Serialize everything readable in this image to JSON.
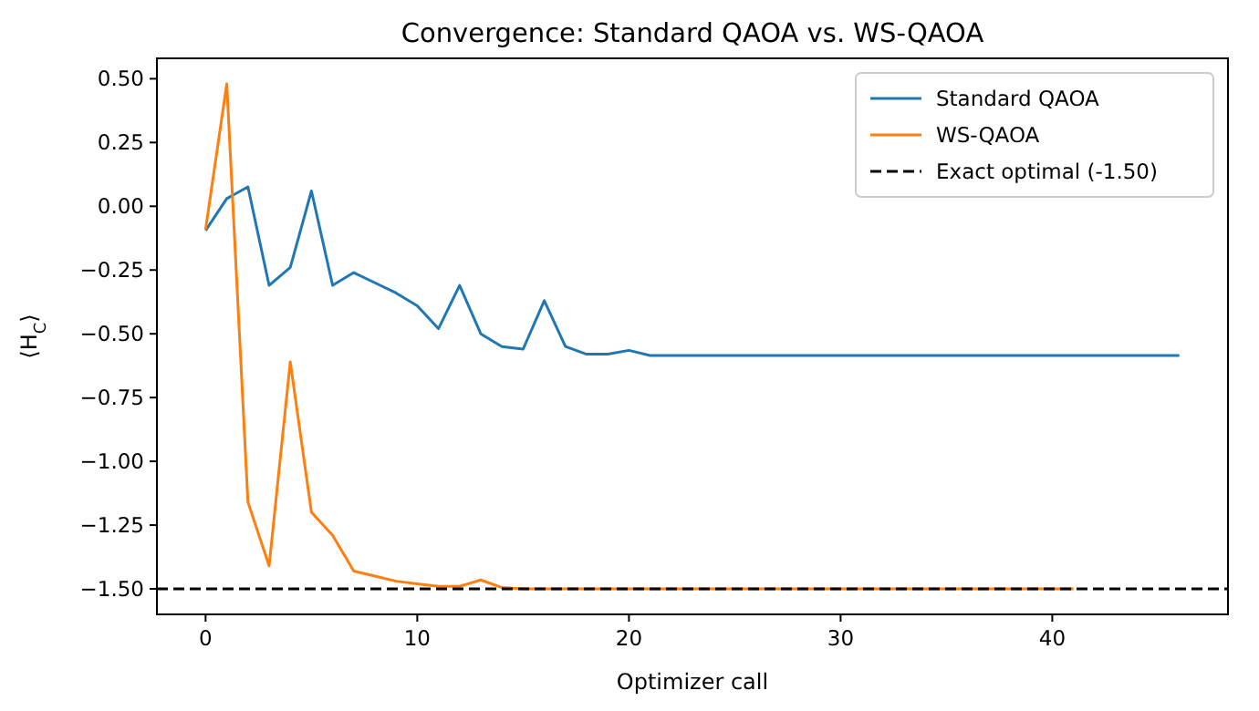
{
  "chart_data": {
    "type": "line",
    "title": "Convergence: Standard QAOA vs. WS-QAOA",
    "xlabel": "Optimizer call",
    "ylabel": "⟨H$_{C}$⟩",
    "series": [
      {
        "name": "Standard QAOA",
        "color": "#1f77b4",
        "x": [
          0,
          1,
          2,
          3,
          4,
          5,
          6,
          7,
          8,
          9,
          10,
          11,
          12,
          13,
          14,
          15,
          16,
          17,
          18,
          19,
          20,
          21,
          22,
          23,
          24,
          25,
          26,
          27,
          28,
          29,
          30,
          31,
          32,
          33,
          34,
          35,
          36,
          37,
          38,
          39,
          40,
          41,
          42,
          43,
          44,
          45,
          46
        ],
        "values": [
          -0.095,
          0.03,
          0.076,
          -0.31,
          -0.24,
          0.06,
          -0.31,
          -0.26,
          -0.3,
          -0.34,
          -0.39,
          -0.48,
          -0.31,
          -0.5,
          -0.55,
          -0.56,
          -0.37,
          -0.55,
          -0.58,
          -0.58,
          -0.565,
          -0.585,
          -0.585,
          -0.585,
          -0.585,
          -0.585,
          -0.585,
          -0.585,
          -0.585,
          -0.585,
          -0.585,
          -0.585,
          -0.585,
          -0.585,
          -0.585,
          -0.585,
          -0.585,
          -0.585,
          -0.585,
          -0.585,
          -0.585,
          -0.585,
          -0.585,
          -0.585,
          -0.585,
          -0.585,
          -0.585
        ]
      },
      {
        "name": "WS-QAOA",
        "color": "#ff7f0e",
        "x": [
          0,
          1,
          2,
          3,
          4,
          5,
          6,
          7,
          8,
          9,
          10,
          11,
          12,
          13,
          14,
          15,
          16,
          17,
          18,
          19,
          20,
          21,
          22,
          23,
          24,
          25,
          26,
          27,
          28,
          29,
          30,
          31,
          32,
          33,
          34,
          35,
          36,
          37,
          38,
          39,
          40,
          41
        ],
        "values": [
          -0.09,
          0.48,
          -1.16,
          -1.41,
          -0.61,
          -1.2,
          -1.29,
          -1.43,
          -1.45,
          -1.47,
          -1.48,
          -1.49,
          -1.49,
          -1.465,
          -1.495,
          -1.5,
          -1.5,
          -1.5,
          -1.5,
          -1.5,
          -1.5,
          -1.5,
          -1.5,
          -1.5,
          -1.5,
          -1.5,
          -1.5,
          -1.5,
          -1.5,
          -1.5,
          -1.5,
          -1.5,
          -1.5,
          -1.5,
          -1.5,
          -1.5,
          -1.5,
          -1.5,
          -1.5,
          -1.5,
          -1.5,
          -1.5
        ]
      }
    ],
    "ref_lines": [
      {
        "axis": "y",
        "value": -1.5,
        "label": "Exact optimal (-1.50)",
        "color": "#000000",
        "line_style": "dashed"
      }
    ],
    "xlim": [
      -2.3,
      48.3
    ],
    "xticks": [
      0,
      10,
      20,
      30,
      40
    ],
    "ylim": [
      -1.6,
      0.58
    ],
    "yticks": [
      {
        "value": 0.5,
        "label": "0.50"
      },
      {
        "value": 0.25,
        "label": "0.25"
      },
      {
        "value": 0,
        "label": "0.00"
      },
      {
        "value": -0.25,
        "label": "−0.25"
      },
      {
        "value": -0.5,
        "label": "−0.50"
      },
      {
        "value": -0.75,
        "label": "−0.75"
      },
      {
        "value": -1,
        "label": "−1.00"
      },
      {
        "value": -1.25,
        "label": "−1.25"
      },
      {
        "value": -1.5,
        "label": "−1.50"
      }
    ],
    "grid": false,
    "legend": "top right",
    "marker": "none",
    "line_style": "solid"
  }
}
